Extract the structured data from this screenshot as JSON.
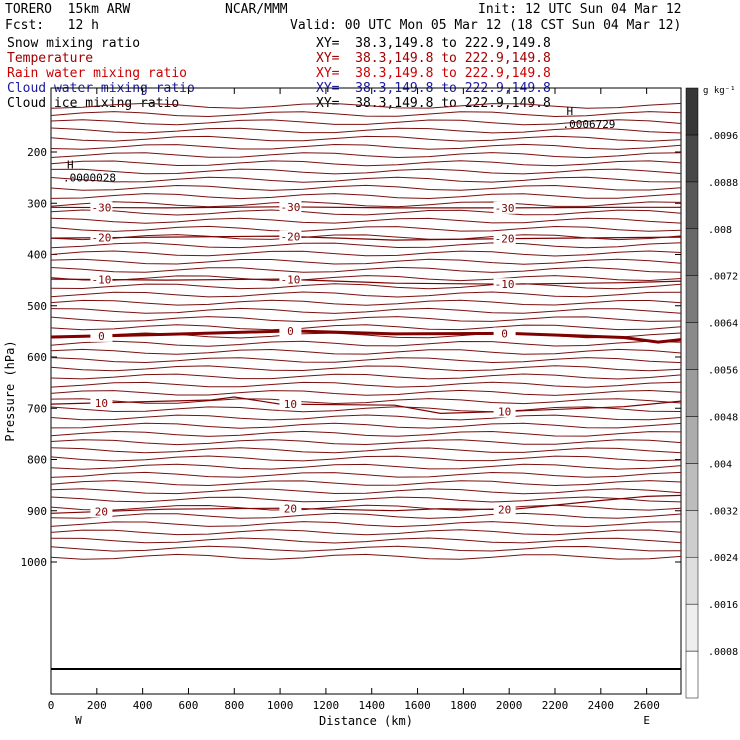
{
  "header": {
    "model": "TORERO  15km ARW",
    "org": "NCAR/MMM",
    "init": "Init: 12 UTC Sun 04 Mar 12",
    "fcst": "Fcst:   12 h",
    "valid": "Valid: 00 UTC Mon 05 Mar 12 (18 CST Sun 04 Mar 12)"
  },
  "fields": [
    {
      "name": "Snow mixing ratio",
      "xy": "XY=  38.3,149.8 to 222.9,149.8",
      "color": "#000000"
    },
    {
      "name": "Temperature",
      "xy": "XY=  38.3,149.8 to 222.9,149.8",
      "color": "#a00000"
    },
    {
      "name": "Rain water mixing ratio",
      "xy": "XY=  38.3,149.8 to 222.9,149.8",
      "color": "#cc0000"
    },
    {
      "name": "Cloud water mixing ratio",
      "xy": "XY=  38.3,149.8 to 222.9,149.8",
      "color": "#1a1aa0"
    },
    {
      "name": "Cloud ice mixing ratio",
      "xy": "XY=  38.3,149.8 to 222.9,149.8",
      "color": "#000000"
    }
  ],
  "chart_data": {
    "type": "contour",
    "xlabel": "Distance (km)",
    "ylabel": "Pressure (hPa)",
    "xlim": [
      0,
      2750
    ],
    "ylim": [
      1050,
      100
    ],
    "x_ticks": [
      "0",
      "200",
      "400",
      "600",
      "800",
      "1000",
      "1200",
      "1400",
      "1600",
      "1800",
      "2000",
      "2200",
      "2400",
      "2600"
    ],
    "y_ticks": [
      "200",
      "300",
      "400",
      "500",
      "600",
      "700",
      "800",
      "900",
      "1000"
    ],
    "x_endpoints": {
      "left": "W",
      "right": "E"
    },
    "colorbar": {
      "unit": "g kg⁻¹",
      "levels": [
        ".0008",
        ".0016",
        ".0024",
        ".0032",
        ".004",
        ".0048",
        ".0056",
        ".0064",
        ".0072",
        ".008",
        ".0088",
        ".0096"
      ]
    },
    "temperature_contours": [
      {
        "label": "-30",
        "x": [
          0,
          500,
          1000,
          1500,
          2000,
          2500,
          2750
        ],
        "p": [
          308,
          309,
          307,
          309,
          309,
          308,
          308
        ]
      },
      {
        "label": "-20",
        "x": [
          0,
          500,
          1000,
          1500,
          2000,
          2500,
          2750
        ],
        "p": [
          368,
          366,
          364,
          372,
          369,
          367,
          366
        ]
      },
      {
        "label": "-10",
        "x": [
          0,
          500,
          1000,
          1500,
          2000,
          2500,
          2750
        ],
        "p": [
          448,
          450,
          448,
          456,
          458,
          455,
          452
        ]
      },
      {
        "label": "0",
        "x": [
          0,
          500,
          1050,
          1500,
          2000,
          2500,
          2650,
          2750
        ],
        "p": [
          561,
          556,
          549,
          555,
          554,
          562,
          571,
          566
        ]
      },
      {
        "label": "10",
        "x": [
          0,
          700,
          800,
          1000,
          1500,
          1700,
          2000,
          2500,
          2750
        ],
        "p": [
          692,
          684,
          678,
          692,
          694,
          710,
          706,
          697,
          686
        ]
      },
      {
        "label": "20",
        "x": [
          0,
          500,
          1000,
          1500,
          1700,
          2000,
          2400,
          2600,
          2750
        ],
        "p": [
          905,
          897,
          895,
          900,
          896,
          898,
          880,
          872,
          870
        ]
      }
    ],
    "annotations": [
      {
        "text": "H",
        "value": ".0000028",
        "x": 70,
        "p": 232
      },
      {
        "text": "H",
        "value": ".0006729",
        "x": 2250,
        "p": 128
      }
    ]
  }
}
